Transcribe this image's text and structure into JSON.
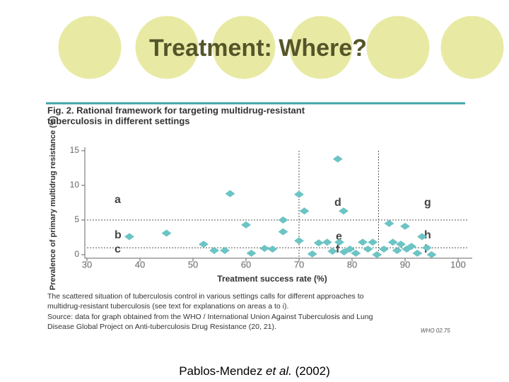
{
  "slide": {
    "title": "Treatment: Where?",
    "citation": [
      "Pablos-Mendez ",
      "et al.",
      " (2002)"
    ]
  },
  "chart_data": {
    "type": "scatter",
    "title": [
      "Fig. 2. Rational framework for targeting multidrug-resistant",
      "tuberculosis in different settings"
    ],
    "x_label": "Treatment success rate (%)",
    "y_label": "Prevalence of primary multidrug resistance (%)",
    "xlim": [
      30,
      100
    ],
    "xticks": [
      30,
      40,
      50,
      60,
      70,
      80,
      90,
      100
    ],
    "ylim": [
      0,
      15
    ],
    "yticks": [
      0,
      5,
      10,
      15
    ],
    "xlines": [
      70,
      85
    ],
    "ylines": [
      5,
      1
    ],
    "region_labels": [
      "a",
      "b",
      "c",
      "d",
      "e",
      "f",
      "g",
      "h",
      "i"
    ],
    "color": "#6cc4c4",
    "x": [
      38,
      45,
      52,
      54,
      56,
      57,
      60,
      61,
      63.5,
      65,
      67,
      67,
      70,
      71,
      70,
      72.5,
      73.7,
      75.3,
      76.3,
      77.3,
      78.4,
      77.6,
      78.5,
      79.6,
      80.7,
      82,
      83,
      83.9,
      84.7,
      86,
      87,
      87.7,
      88.5,
      89.2,
      90,
      90.3,
      91.2,
      92.3,
      93.2,
      94.1,
      95
    ],
    "y": [
      2.6,
      3.1,
      1.5,
      0.6,
      0.6,
      8.8,
      4.3,
      0.2,
      0.9,
      0.8,
      5.0,
      3.3,
      8.7,
      6.3,
      2.0,
      0.1,
      1.7,
      1.8,
      0.5,
      13.8,
      6.3,
      1.8,
      0.4,
      0.8,
      0.2,
      1.8,
      0.8,
      1.8,
      0,
      0.8,
      4.5,
      1.8,
      0.6,
      1.5,
      4.1,
      0.8,
      1.2,
      0.2,
      2.6,
      1.0,
      0
    ],
    "caption": [
      "The scattered situation of tuberculosis control in various settings calls for different approaches to",
      "multidrug-resistant tuberculosis (see text for explanations on areas a to i).",
      "Source: data for graph obtained from the WHO / International Union Against Tuberculosis and Lung",
      "Disease Global Project on Anti-tuberculosis Drug Resistance (20, 21)."
    ],
    "source_tag": "WHO 02.75"
  }
}
